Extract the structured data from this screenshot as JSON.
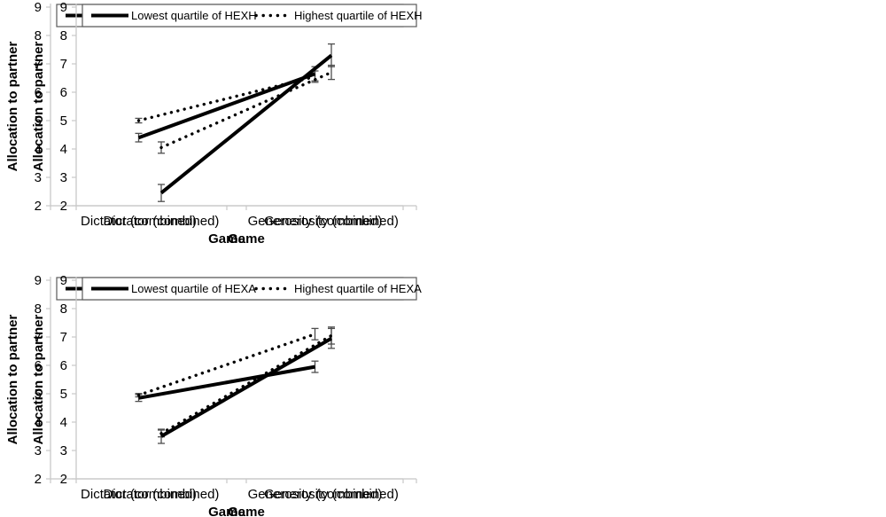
{
  "figure": {
    "description": "Four-panel line chart figure: allocation to partner by game, split by HEXH and HEXA quartiles",
    "background": "#ffffff"
  },
  "colors": {
    "series_line": "#000000",
    "axis_line": "#c8c8c8",
    "tick_mark": "#c8c8c8",
    "error_bar": "#4d4d4d",
    "legend_border": "#595959",
    "text": "#000000",
    "background": "#ffffff"
  },
  "chart_data": [
    {
      "type": "line",
      "position": "top-left",
      "title": "",
      "xlabel": "Game",
      "ylabel": "Allocation to partner",
      "ylim": [
        2,
        9
      ],
      "yticks": [
        2,
        3,
        4,
        5,
        6,
        7,
        8,
        9
      ],
      "categories": [
        "Dictator (combined)",
        "Generosity (combined)"
      ],
      "grid": false,
      "legend_position": "top",
      "series": [
        {
          "name": "Lowest quartile of HEXH",
          "style": "solid",
          "values": [
            4.4,
            6.65
          ],
          "errors": [
            0.15,
            0.25
          ]
        },
        {
          "name": "Highest quartile of HEXH",
          "style": "dotted",
          "values": [
            5.0,
            6.55
          ],
          "errors": [
            0.08,
            0.2
          ]
        }
      ]
    },
    {
      "type": "line",
      "position": "top-right",
      "title": "",
      "xlabel": "Game",
      "ylabel": "Allocation to partner",
      "ylim": [
        2,
        9
      ],
      "yticks": [
        2,
        3,
        4,
        5,
        6,
        7,
        8,
        9
      ],
      "categories": [
        "Dictator (combined)",
        "Generosity (combined)"
      ],
      "grid": false,
      "legend_position": "top",
      "series": [
        {
          "name": "Lowest quartile of HEXH",
          "style": "solid",
          "values": [
            2.45,
            7.3
          ],
          "errors": [
            0.3,
            0.4
          ]
        },
        {
          "name": "Highest quartile of HEXH",
          "style": "dotted",
          "values": [
            4.05,
            6.7
          ],
          "errors": [
            0.2,
            0.25
          ]
        }
      ]
    },
    {
      "type": "line",
      "position": "bottom-left",
      "title": "",
      "xlabel": "Game",
      "ylabel": "Allocation to partner",
      "ylim": [
        2,
        9
      ],
      "yticks": [
        2,
        3,
        4,
        5,
        6,
        7,
        8,
        9
      ],
      "categories": [
        "Dictator (combined)",
        "Generosity (combined)"
      ],
      "grid": false,
      "legend_position": "top",
      "series": [
        {
          "name": "Lowest quartile of HEXA",
          "style": "solid",
          "values": [
            4.85,
            5.95
          ],
          "errors": [
            0.12,
            0.2
          ]
        },
        {
          "name": "Highest quartile of HEXA",
          "style": "dotted",
          "values": [
            4.95,
            7.1
          ],
          "errors": [
            0.06,
            0.2
          ]
        }
      ]
    },
    {
      "type": "line",
      "position": "bottom-right",
      "title": "",
      "xlabel": "Game",
      "ylabel": "Allocation to partner",
      "ylim": [
        2,
        9
      ],
      "yticks": [
        2,
        3,
        4,
        5,
        6,
        7,
        8,
        9
      ],
      "categories": [
        "Dictator (combined)",
        "Generosity (combined)"
      ],
      "grid": false,
      "legend_position": "top",
      "series": [
        {
          "name": "Lowest quartile of HEXA",
          "style": "solid",
          "values": [
            3.5,
            6.95
          ],
          "errors": [
            0.25,
            0.35
          ]
        },
        {
          "name": "Highest quartile of HEXA",
          "style": "dotted",
          "values": [
            3.6,
            7.05
          ],
          "errors": [
            0.12,
            0.3
          ]
        }
      ]
    }
  ]
}
